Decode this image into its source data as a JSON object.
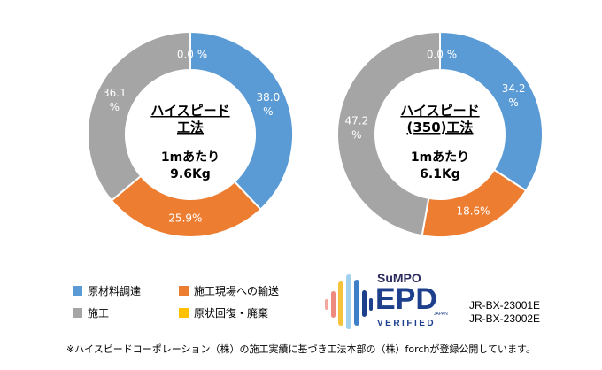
{
  "chart_data": [
    {
      "type": "pie",
      "variant": "donut",
      "title": "ハイスピード 工法",
      "title_lines": [
        "ハイスピード",
        "工法"
      ],
      "center_lines": [
        "1mあたり",
        "9.6Kg"
      ],
      "categories": [
        "原材料調達",
        "施工現場への輸送",
        "施工",
        "原状回復・廃棄"
      ],
      "values": [
        38.0,
        25.9,
        36.1,
        0.0
      ],
      "labels": [
        {
          "text": "38.0\n%",
          "index": 0
        },
        {
          "text": "25.9%",
          "index": 1
        },
        {
          "text": "36.1\n%",
          "index": 2
        },
        {
          "text": "0.0 %",
          "index": 3
        }
      ],
      "colors": [
        "#5b9bd5",
        "#ed7d31",
        "#a5a5a5",
        "#ffc000"
      ]
    },
    {
      "type": "pie",
      "variant": "donut",
      "title": "ハイスピード (350)工法",
      "title_lines": [
        "ハイスピード",
        "(350)工法"
      ],
      "center_lines": [
        "1mあたり",
        "6.1Kg"
      ],
      "categories": [
        "原材料調達",
        "施工現場への輸送",
        "施工",
        "原状回復・廃棄"
      ],
      "values": [
        34.2,
        18.6,
        47.2,
        0.0
      ],
      "labels": [
        {
          "text": "34.2\n%",
          "index": 0
        },
        {
          "text": "18.6%",
          "index": 1
        },
        {
          "text": "47.2\n%",
          "index": 2
        },
        {
          "text": "0.0 %",
          "index": 3
        }
      ],
      "colors": [
        "#5b9bd5",
        "#ed7d31",
        "#a5a5a5",
        "#ffc000"
      ]
    }
  ],
  "legend": [
    {
      "label": "原材料調達",
      "color": "#5b9bd5"
    },
    {
      "label": "施工現場への輸送",
      "color": "#ed7d31"
    },
    {
      "label": "施工",
      "color": "#a5a5a5"
    },
    {
      "label": "原状回復・廃棄",
      "color": "#ffc000"
    }
  ],
  "logo": {
    "brand": "SuMPO",
    "mark": "EPD",
    "sub": "JAPAN",
    "verified": "VERIFIED"
  },
  "codes": [
    "JR-BX-23001E",
    "JR-BX-23002E"
  ],
  "footnote": "※ハイスピードコーポレーション（株）の施工実績に基づき工法本部の（株）forchが登録公開しています。"
}
